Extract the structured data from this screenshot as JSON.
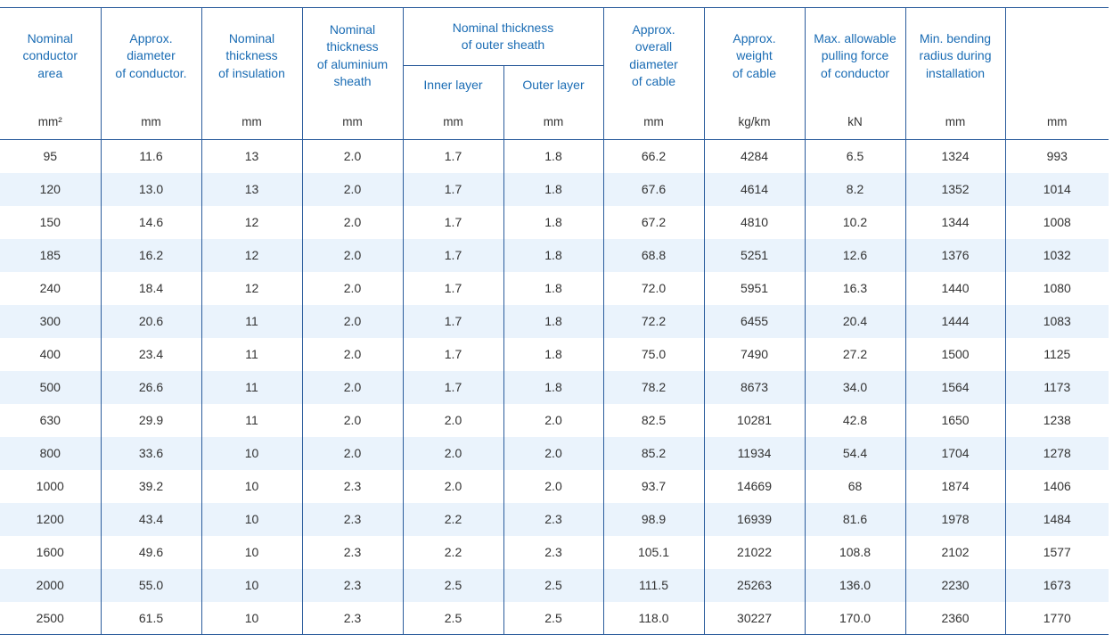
{
  "table": {
    "headers": {
      "conductor_area": "Nominal\nconductor\narea",
      "diameter_conductor": "Approx.\ndiameter\nof conductor.",
      "thickness_insulation": "Nominal\nthickness\nof insulation",
      "thickness_aluminium": "Nominal\nthickness\nof aluminium\nsheath",
      "outer_sheath_group": "Nominal thickness\nof outer sheath",
      "inner_layer": "Inner layer",
      "outer_layer": "Outer layer",
      "overall_diameter": "Approx.\noverall\ndiameter\nof cable",
      "weight": "Approx.\nweight\nof cable",
      "pulling_force": "Max. allowable\npulling force\nof conductor",
      "bending_radius": "Min. bending\nradius during\ninstallation",
      "last_column": ""
    },
    "units": [
      "mm²",
      "mm",
      "mm",
      "mm",
      "mm",
      "mm",
      "mm",
      "kg/km",
      "kN",
      "mm",
      "mm"
    ],
    "rows": [
      [
        "95",
        "11.6",
        "13",
        "2.0",
        "1.7",
        "1.8",
        "66.2",
        "4284",
        "6.5",
        "1324",
        "993"
      ],
      [
        "120",
        "13.0",
        "13",
        "2.0",
        "1.7",
        "1.8",
        "67.6",
        "4614",
        "8.2",
        "1352",
        "1014"
      ],
      [
        "150",
        "14.6",
        "12",
        "2.0",
        "1.7",
        "1.8",
        "67.2",
        "4810",
        "10.2",
        "1344",
        "1008"
      ],
      [
        "185",
        "16.2",
        "12",
        "2.0",
        "1.7",
        "1.8",
        "68.8",
        "5251",
        "12.6",
        "1376",
        "1032"
      ],
      [
        "240",
        "18.4",
        "12",
        "2.0",
        "1.7",
        "1.8",
        "72.0",
        "5951",
        "16.3",
        "1440",
        "1080"
      ],
      [
        "300",
        "20.6",
        "11",
        "2.0",
        "1.7",
        "1.8",
        "72.2",
        "6455",
        "20.4",
        "1444",
        "1083"
      ],
      [
        "400",
        "23.4",
        "11",
        "2.0",
        "1.7",
        "1.8",
        "75.0",
        "7490",
        "27.2",
        "1500",
        "1125"
      ],
      [
        "500",
        "26.6",
        "11",
        "2.0",
        "1.7",
        "1.8",
        "78.2",
        "8673",
        "34.0",
        "1564",
        "1173"
      ],
      [
        "630",
        "29.9",
        "11",
        "2.0",
        "2.0",
        "2.0",
        "82.5",
        "10281",
        "42.8",
        "1650",
        "1238"
      ],
      [
        "800",
        "33.6",
        "10",
        "2.0",
        "2.0",
        "2.0",
        "85.2",
        "11934",
        "54.4",
        "1704",
        "1278"
      ],
      [
        "1000",
        "39.2",
        "10",
        "2.3",
        "2.0",
        "2.0",
        "93.7",
        "14669",
        "68",
        "1874",
        "1406"
      ],
      [
        "1200",
        "43.4",
        "10",
        "2.3",
        "2.2",
        "2.3",
        "98.9",
        "16939",
        "81.6",
        "1978",
        "1484"
      ],
      [
        "1600",
        "49.6",
        "10",
        "2.3",
        "2.2",
        "2.3",
        "105.1",
        "21022",
        "108.8",
        "2102",
        "1577"
      ],
      [
        "2000",
        "55.0",
        "10",
        "2.3",
        "2.5",
        "2.5",
        "111.5",
        "25263",
        "136.0",
        "2230",
        "1673"
      ],
      [
        "2500",
        "61.5",
        "10",
        "2.3",
        "2.5",
        "2.5",
        "118.0",
        "30227",
        "170.0",
        "2360",
        "1770"
      ]
    ]
  }
}
